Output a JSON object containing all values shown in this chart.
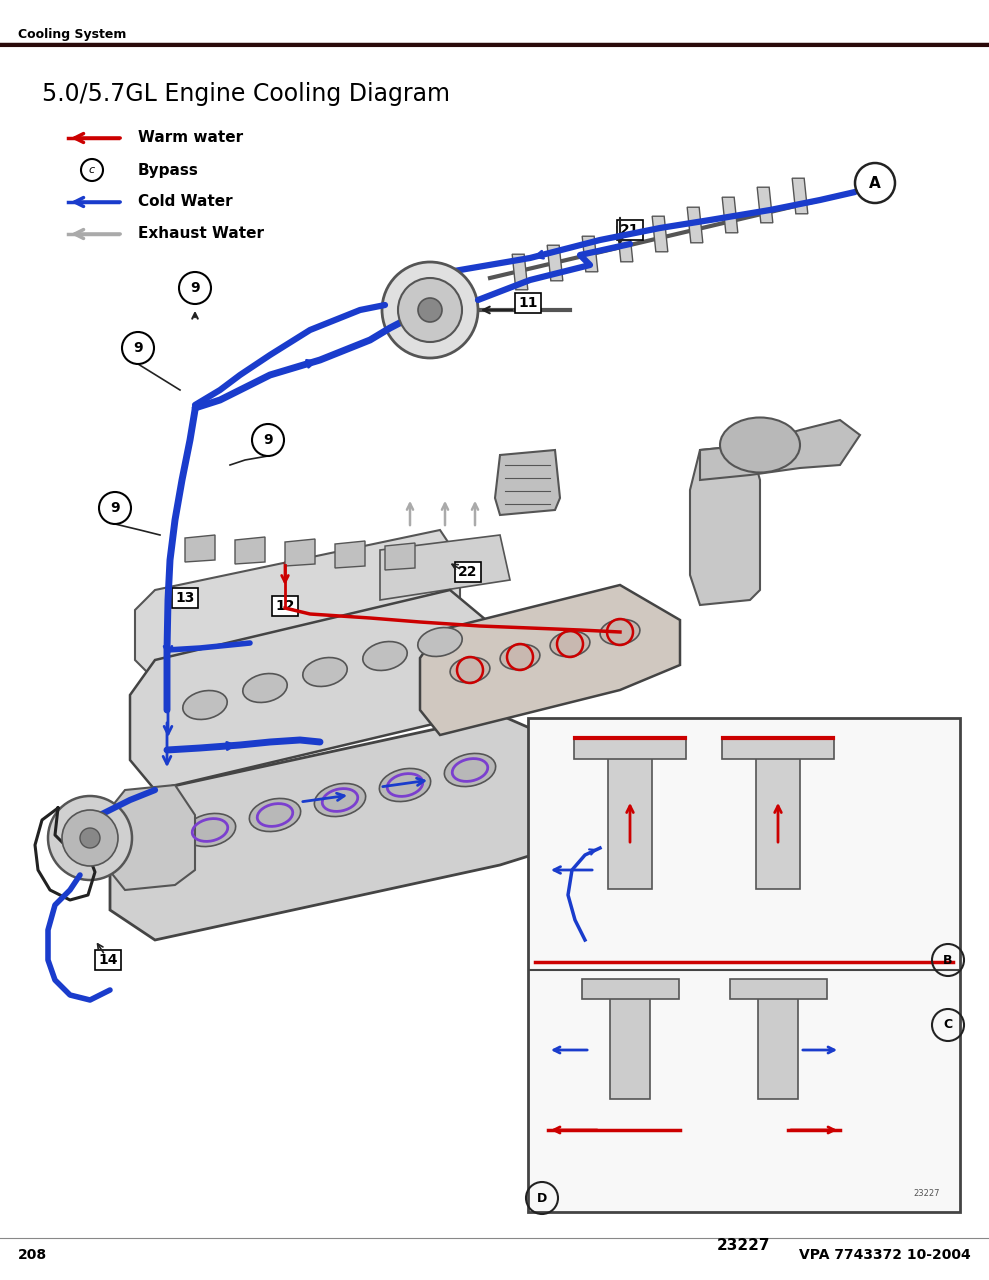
{
  "page_title": "Cooling System",
  "diagram_title": "5.0/5.7GL Engine Cooling Diagram",
  "legend": [
    {
      "label": "Warm water",
      "color": "#cc0000",
      "type": "arrow"
    },
    {
      "label": "Bypass",
      "color": "#000000",
      "type": "circle_c"
    },
    {
      "label": "Cold Water",
      "color": "#1a3ccc",
      "type": "arrow"
    },
    {
      "label": "Exhaust Water",
      "color": "#aaaaaa",
      "type": "arrow"
    }
  ],
  "page_number": "208",
  "doc_ref": "VPA 7743372 10-2004",
  "figure_number": "23227",
  "bg_color": "#ffffff",
  "header_line_color": "#3a1a1a",
  "title_color": "#000000",
  "warm_water_color": "#cc0000",
  "cold_water_color": "#1a3ccc",
  "bypass_color": "#7b3fcf",
  "exhaust_color": "#aaaaaa"
}
